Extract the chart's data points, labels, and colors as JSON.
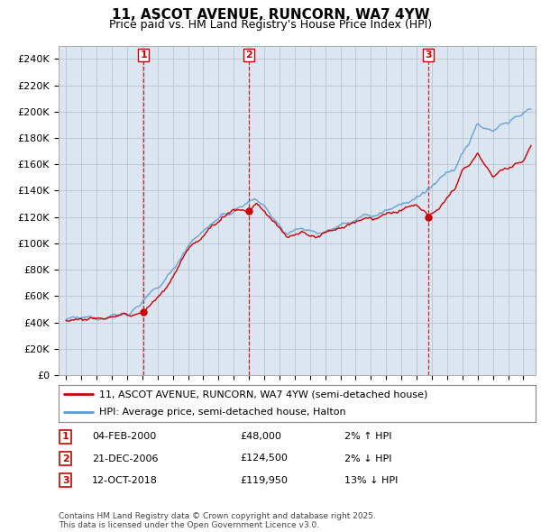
{
  "title": "11, ASCOT AVENUE, RUNCORN, WA7 4YW",
  "subtitle": "Price paid vs. HM Land Registry's House Price Index (HPI)",
  "legend_line1": "11, ASCOT AVENUE, RUNCORN, WA7 4YW (semi-detached house)",
  "legend_line2": "HPI: Average price, semi-detached house, Halton",
  "footer": "Contains HM Land Registry data © Crown copyright and database right 2025.\nThis data is licensed under the Open Government Licence v3.0.",
  "sale_markers": [
    {
      "num": 1,
      "date": "04-FEB-2000",
      "price": 48000,
      "pct": "2%",
      "dir": "↑"
    },
    {
      "num": 2,
      "date": "21-DEC-2006",
      "price": 124500,
      "pct": "2%",
      "dir": "↓"
    },
    {
      "num": 3,
      "date": "12-OCT-2018",
      "price": 119950,
      "pct": "13%",
      "dir": "↓"
    }
  ],
  "sale_years": [
    2000.09,
    2006.97,
    2018.78
  ],
  "sale_prices": [
    48000,
    124500,
    119950
  ],
  "hpi_color": "#5b9bd5",
  "price_color": "#cc0000",
  "vline_color": "#cc0000",
  "grid_color": "#c0c8d8",
  "chart_bg": "#dce6f1",
  "bg_color": "#ffffff",
  "ylim": [
    0,
    250000
  ],
  "yticks": [
    0,
    20000,
    40000,
    60000,
    80000,
    100000,
    120000,
    140000,
    160000,
    180000,
    200000,
    220000,
    240000
  ],
  "xlim_start": 1994.5,
  "xlim_end": 2025.8
}
